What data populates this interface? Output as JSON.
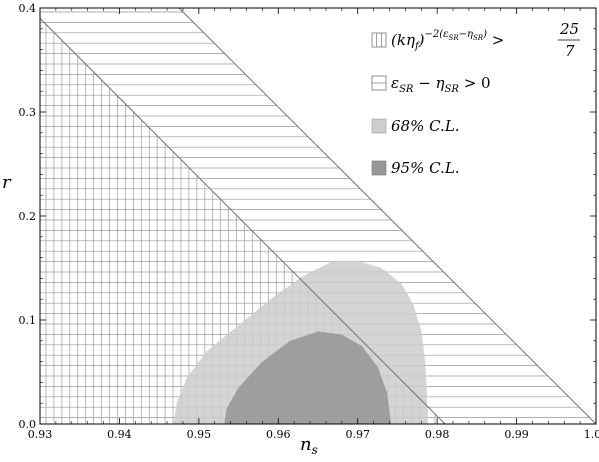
{
  "chart_data": {
    "type": "area",
    "xlabel": "n",
    "xlabel_sub": "s",
    "ylabel": "r",
    "xlim": [
      0.93,
      1.0
    ],
    "ylim": [
      0.0,
      0.4
    ],
    "x_ticks": [
      0.93,
      0.94,
      0.95,
      0.96,
      0.97,
      0.98,
      0.99,
      1.0
    ],
    "x_tick_labels": [
      "0.93",
      "0.94",
      "0.95",
      "0.96",
      "0.97",
      "0.98",
      "0.99",
      "1.00"
    ],
    "y_ticks": [
      0.0,
      0.1,
      0.2,
      0.3,
      0.4
    ],
    "y_tick_labels": [
      "0.0",
      "0.1",
      "0.2",
      "0.3",
      "0.4"
    ],
    "grid": false,
    "legend_position": "top-right",
    "colors": {
      "cl68": "#cdcdcd",
      "cl95": "#989898",
      "hatch": "#9a9a9a",
      "boundary": "#707070"
    },
    "series": [
      {
        "name_parts": [
          "(k",
          "η",
          "f",
          ")",
          "−2(ε",
          "SR",
          "−η",
          "SR",
          ")",
          "> 25/7"
        ],
        "kind": "hatch-grid",
        "boundary_line": [
          [
            0.93,
            0.39
          ],
          [
            0.981,
            0.0
          ]
        ]
      },
      {
        "name_parts": [
          "ε",
          "SR",
          " − η",
          "SR",
          " > 0"
        ],
        "kind": "hatch-horizontal",
        "boundary_line": [
          [
            0.9475,
            0.4
          ],
          [
            1.0,
            0.0
          ]
        ]
      },
      {
        "name": "68% C.L.",
        "kind": "filled-region",
        "outline": [
          [
            0.9468,
            0.0
          ],
          [
            0.9472,
            0.02
          ],
          [
            0.9485,
            0.045
          ],
          [
            0.951,
            0.07
          ],
          [
            0.955,
            0.095
          ],
          [
            0.959,
            0.12
          ],
          [
            0.963,
            0.142
          ],
          [
            0.967,
            0.157
          ],
          [
            0.97,
            0.157
          ],
          [
            0.973,
            0.15
          ],
          [
            0.9755,
            0.135
          ],
          [
            0.977,
            0.115
          ],
          [
            0.978,
            0.09
          ],
          [
            0.9785,
            0.06
          ],
          [
            0.9787,
            0.03
          ],
          [
            0.9788,
            0.0
          ]
        ]
      },
      {
        "name": "95% C.L.",
        "kind": "filled-region",
        "outline": [
          [
            0.9532,
            0.0
          ],
          [
            0.9535,
            0.015
          ],
          [
            0.955,
            0.035
          ],
          [
            0.958,
            0.06
          ],
          [
            0.9615,
            0.08
          ],
          [
            0.965,
            0.089
          ],
          [
            0.968,
            0.086
          ],
          [
            0.9705,
            0.075
          ],
          [
            0.9725,
            0.055
          ],
          [
            0.9737,
            0.03
          ],
          [
            0.9742,
            0.0
          ]
        ]
      }
    ],
    "legend": {
      "label_68": "68% C.L.",
      "label_95": "95% C.L.",
      "frac_num": "25",
      "frac_den": "7"
    }
  }
}
